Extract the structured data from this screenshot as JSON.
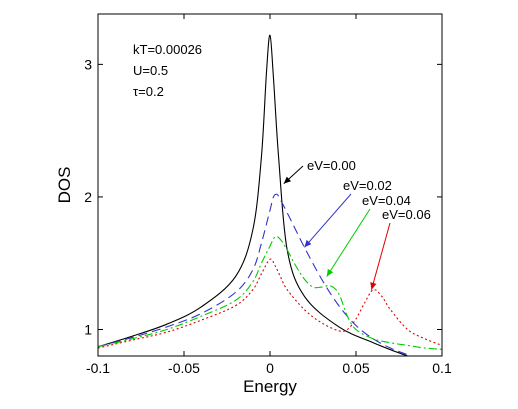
{
  "chart_data": {
    "type": "line",
    "title": "",
    "xlabel": "Energy",
    "ylabel": "DOS",
    "xlim": [
      -0.1,
      0.1
    ],
    "ylim": [
      0.8,
      3.38
    ],
    "x_ticks": [
      -0.1,
      -0.05,
      0,
      0.05,
      0.1
    ],
    "x_tick_labels": [
      "-0.1",
      "-0.05",
      "0",
      "0.05",
      "0.1"
    ],
    "y_ticks": [
      1,
      2,
      3
    ],
    "y_tick_labels": [
      "1",
      "2",
      "3"
    ],
    "grid": false,
    "legend": "none",
    "parameters": [
      "kT=0.00026",
      "U=0.5",
      "τ=0.2"
    ],
    "series": [
      {
        "color": "#000000",
        "dash": "solid",
        "x": [
          -0.1,
          -0.08,
          -0.06,
          -0.04,
          -0.02,
          -0.01,
          -0.005,
          -0.002,
          0,
          0.002,
          0.005,
          0.01,
          0.02,
          0.04,
          0.06,
          0.08,
          0.1
        ],
        "y": [
          0.87,
          0.95,
          1.04,
          1.17,
          1.4,
          1.75,
          2.3,
          2.95,
          3.22,
          2.9,
          2.3,
          1.6,
          1.25,
          1.02,
          0.9,
          0.8,
          0.72
        ]
      },
      {
        "color": "#3333cc",
        "dash": "dashed",
        "x": [
          -0.1,
          -0.08,
          -0.06,
          -0.04,
          -0.02,
          -0.01,
          -0.005,
          0,
          0.002,
          0.004,
          0.006,
          0.01,
          0.015,
          0.02,
          0.03,
          0.04,
          0.05,
          0.06,
          0.07,
          0.08,
          0.09,
          0.1
        ],
        "y": [
          0.87,
          0.94,
          1.02,
          1.12,
          1.28,
          1.45,
          1.65,
          1.9,
          2.0,
          2.02,
          1.98,
          1.88,
          1.75,
          1.62,
          1.38,
          1.18,
          1.03,
          0.93,
          0.86,
          0.81,
          0.77,
          0.74
        ]
      },
      {
        "color": "#00cc00",
        "dash": "dashdot",
        "x": [
          -0.1,
          -0.08,
          -0.06,
          -0.04,
          -0.02,
          -0.01,
          -0.005,
          0,
          0.003,
          0.006,
          0.01,
          0.015,
          0.02,
          0.025,
          0.03,
          0.035,
          0.04,
          0.045,
          0.05,
          0.06,
          0.07,
          0.08,
          0.09,
          0.1
        ],
        "y": [
          0.87,
          0.93,
          1.0,
          1.1,
          1.22,
          1.36,
          1.5,
          1.63,
          1.7,
          1.68,
          1.6,
          1.48,
          1.38,
          1.32,
          1.32,
          1.33,
          1.27,
          1.1,
          1.0,
          0.93,
          0.9,
          0.88,
          0.86,
          0.85
        ]
      },
      {
        "color": "#e00000",
        "dash": "dotted",
        "x": [
          -0.1,
          -0.08,
          -0.06,
          -0.04,
          -0.02,
          -0.01,
          -0.005,
          0,
          0.003,
          0.006,
          0.01,
          0.02,
          0.03,
          0.04,
          0.045,
          0.05,
          0.055,
          0.06,
          0.065,
          0.07,
          0.08,
          0.09,
          0.1
        ],
        "y": [
          0.86,
          0.92,
          0.98,
          1.07,
          1.18,
          1.3,
          1.42,
          1.53,
          1.48,
          1.4,
          1.3,
          1.15,
          1.05,
          0.99,
          1.0,
          1.08,
          1.2,
          1.3,
          1.25,
          1.15,
          1.0,
          0.93,
          0.88
        ]
      }
    ],
    "annotations": [
      {
        "text": "eV=0.00",
        "arrow_to": [
          0.008,
          2.1
        ],
        "color": "#000000"
      },
      {
        "text": "eV=0.02",
        "arrow_to": [
          0.02,
          1.62
        ],
        "color": "#3333cc"
      },
      {
        "text": "eV=0.04",
        "arrow_to": [
          0.033,
          1.4
        ],
        "color": "#00cc00"
      },
      {
        "text": "eV=0.06",
        "arrow_to": [
          0.059,
          1.3
        ],
        "color": "#e00000"
      }
    ]
  }
}
